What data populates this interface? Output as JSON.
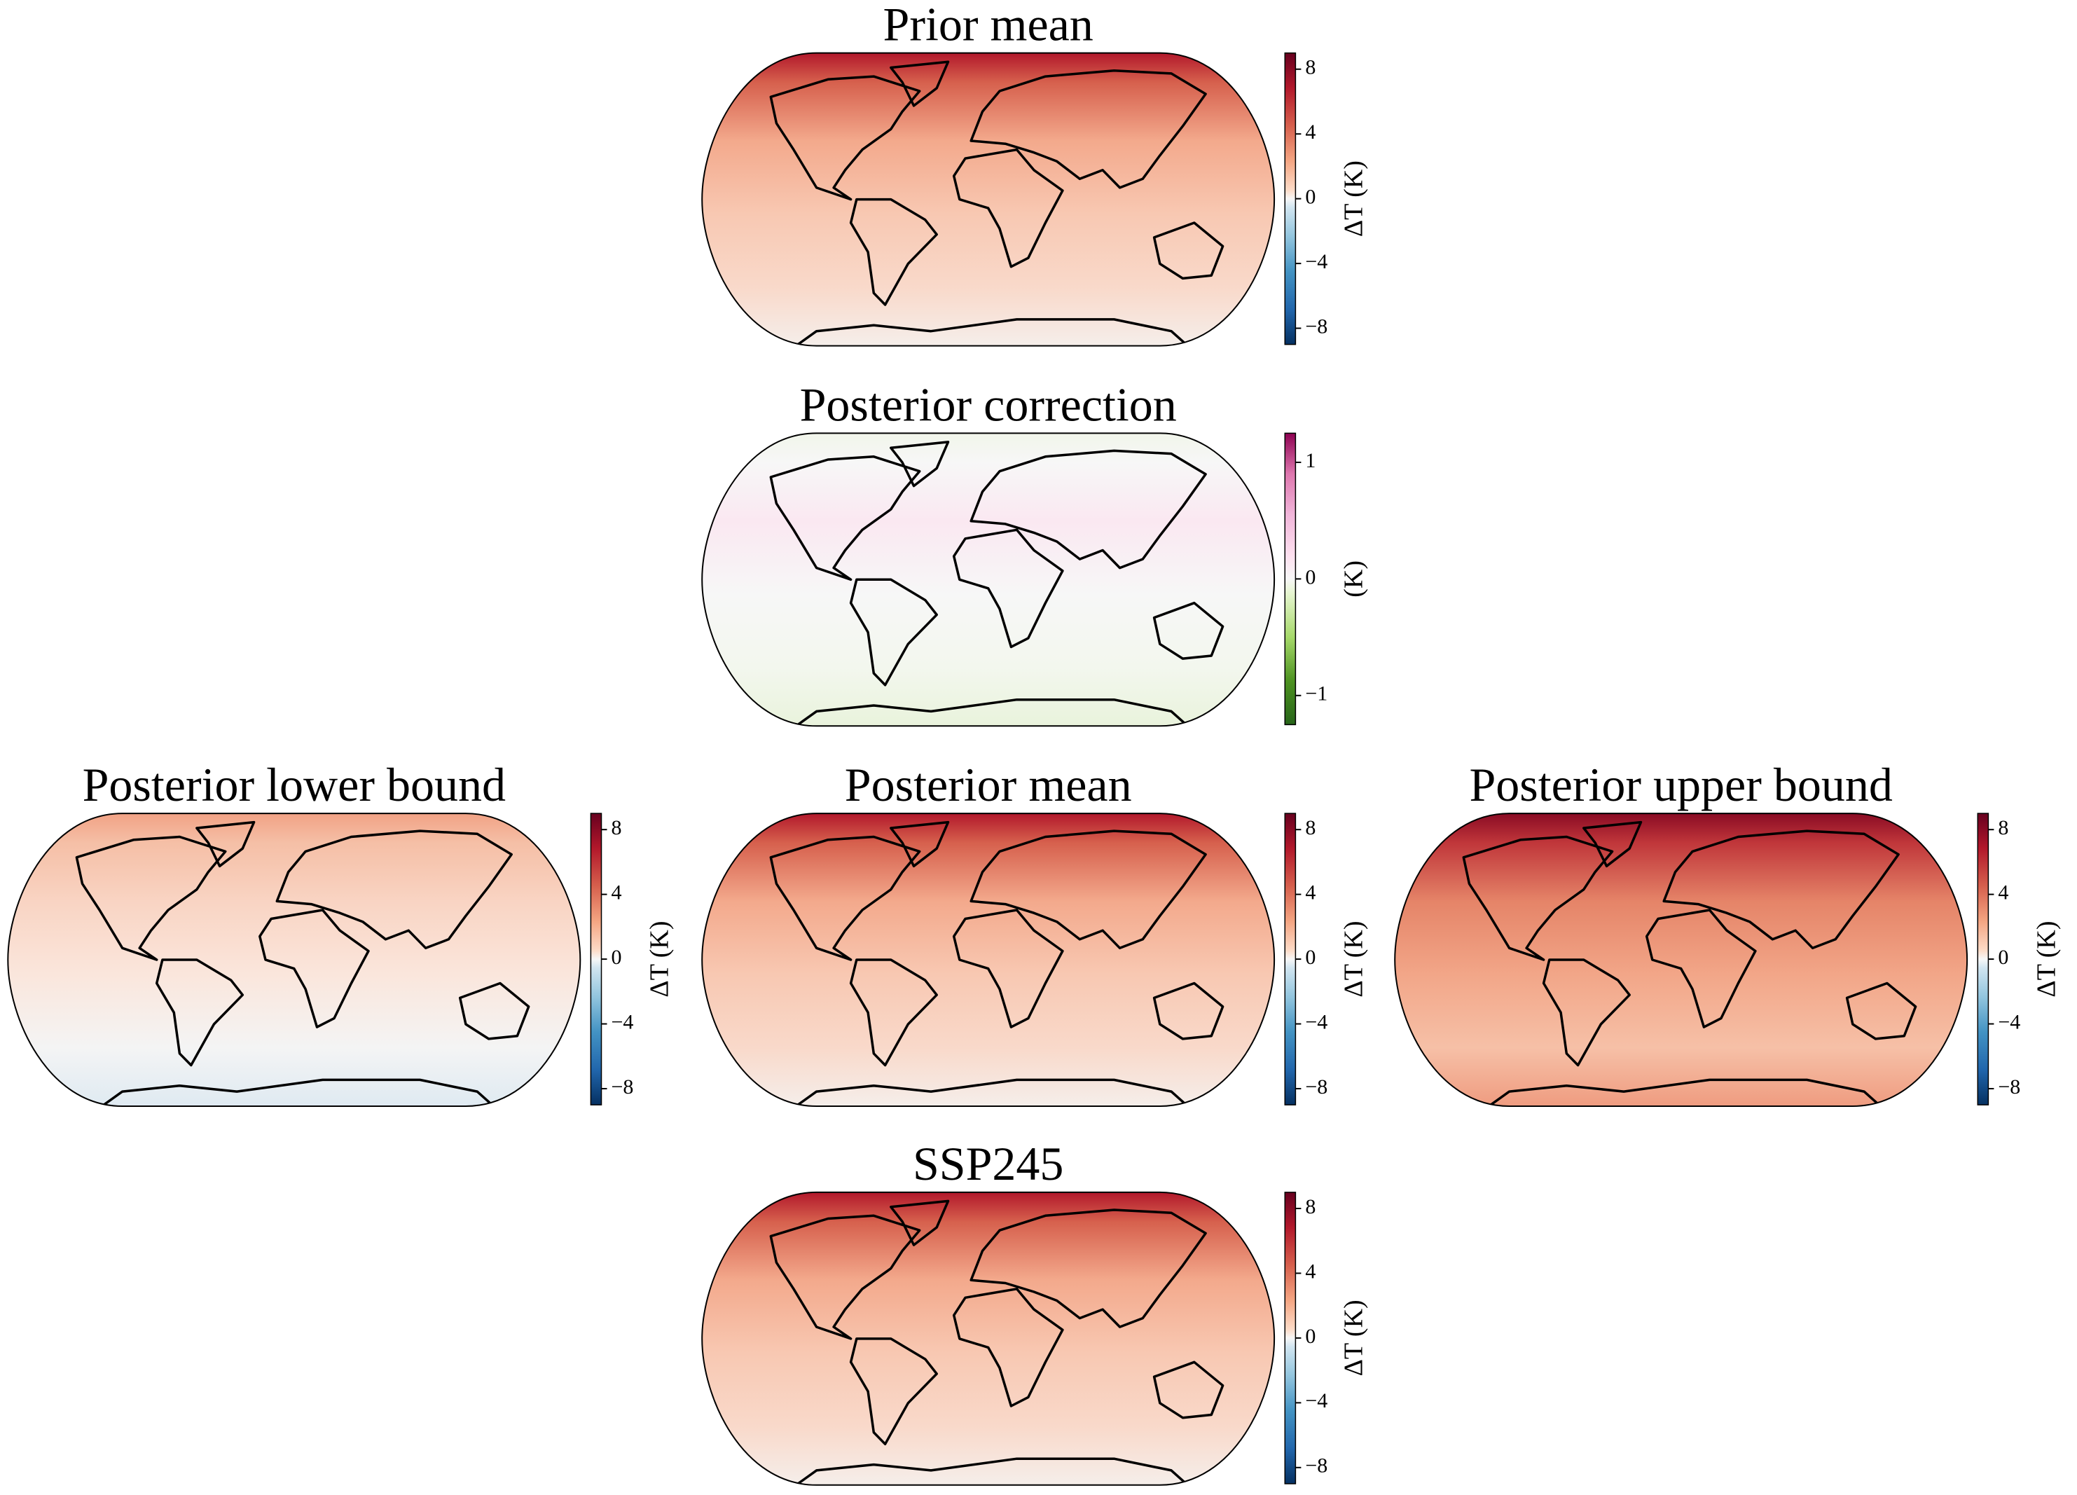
{
  "panels": [
    {
      "title": "Prior mean",
      "colorbar": {
        "label": "ΔT (K)",
        "lim": [
          -9,
          9
        ],
        "ticks": [
          {
            "value": -8,
            "label": "−8"
          },
          {
            "value": -4,
            "label": "−4"
          },
          0,
          4,
          8
        ]
      }
    },
    {
      "title": "Posterior correction",
      "colorbar": {
        "label": "(K)",
        "lim": [
          -1.25,
          1.25
        ],
        "ticks": [
          {
            "value": -1,
            "label": "−1"
          },
          0,
          1
        ]
      }
    },
    {
      "title": "Posterior lower bound",
      "colorbar": {
        "label": "ΔT (K)",
        "lim": [
          -9,
          9
        ],
        "ticks": [
          {
            "value": -8,
            "label": "−8"
          },
          {
            "value": -4,
            "label": "−4"
          },
          0,
          4,
          8
        ]
      }
    },
    {
      "title": "Posterior mean",
      "colorbar": {
        "label": "ΔT (K)",
        "lim": [
          -9,
          9
        ],
        "ticks": [
          {
            "value": -8,
            "label": "−8"
          },
          {
            "value": -4,
            "label": "−4"
          },
          0,
          4,
          8
        ]
      }
    },
    {
      "title": "Posterior upper bound",
      "colorbar": {
        "label": "ΔT (K)",
        "lim": [
          -9,
          9
        ],
        "ticks": [
          {
            "value": -8,
            "label": "−8"
          },
          {
            "value": -4,
            "label": "−4"
          },
          0,
          4,
          8
        ]
      }
    },
    {
      "title": "SSP245",
      "colorbar": {
        "label": "ΔT (K)",
        "lim": [
          -9,
          9
        ],
        "ticks": [
          {
            "value": -8,
            "label": "−8"
          },
          {
            "value": -4,
            "label": "−4"
          },
          0,
          4,
          8
        ]
      }
    }
  ]
}
